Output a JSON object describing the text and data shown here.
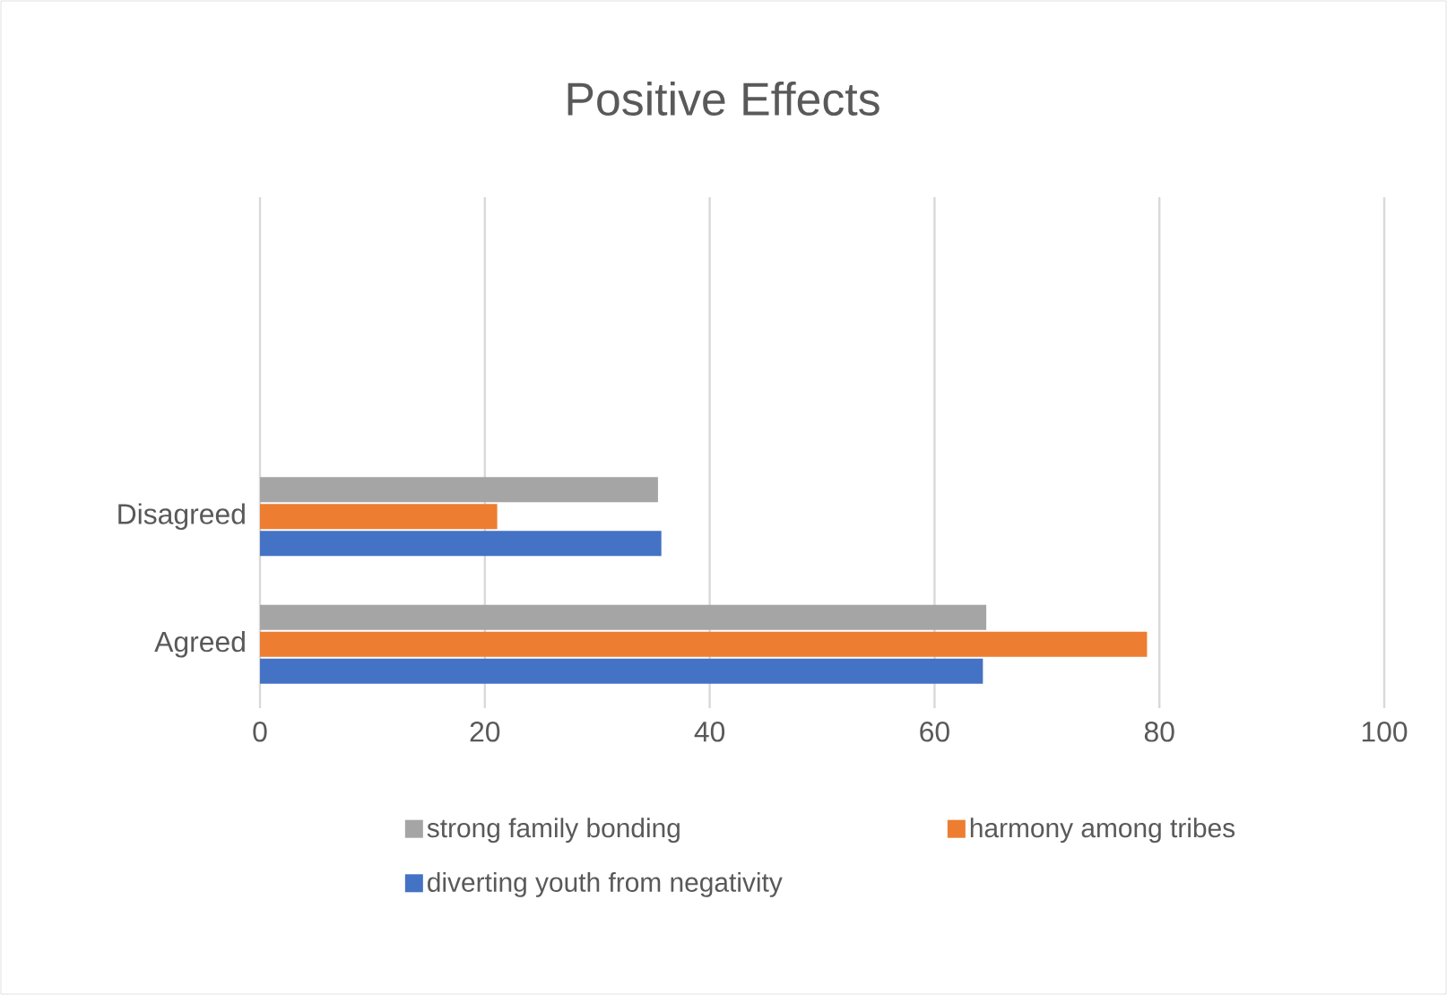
{
  "chart_data": {
    "type": "bar",
    "orientation": "horizontal",
    "title": "Positive Effects",
    "categories": [
      null,
      null,
      "Disagreed",
      "Agreed"
    ],
    "series": [
      {
        "name": "strong family bonding",
        "color": "#a5a5a5",
        "values": [
          null,
          null,
          35.4,
          64.6
        ]
      },
      {
        "name": "harmony among tribes",
        "color": "#ed7d31",
        "values": [
          null,
          null,
          21.1,
          78.9
        ]
      },
      {
        "name": "diverting youth from negativity",
        "color": "#4472c4",
        "values": [
          null,
          null,
          35.7,
          64.3
        ]
      }
    ],
    "xlim": [
      0,
      100
    ],
    "xticks": [
      0,
      20,
      40,
      60,
      80,
      100
    ],
    "grid": "x",
    "legend": "bottom"
  }
}
